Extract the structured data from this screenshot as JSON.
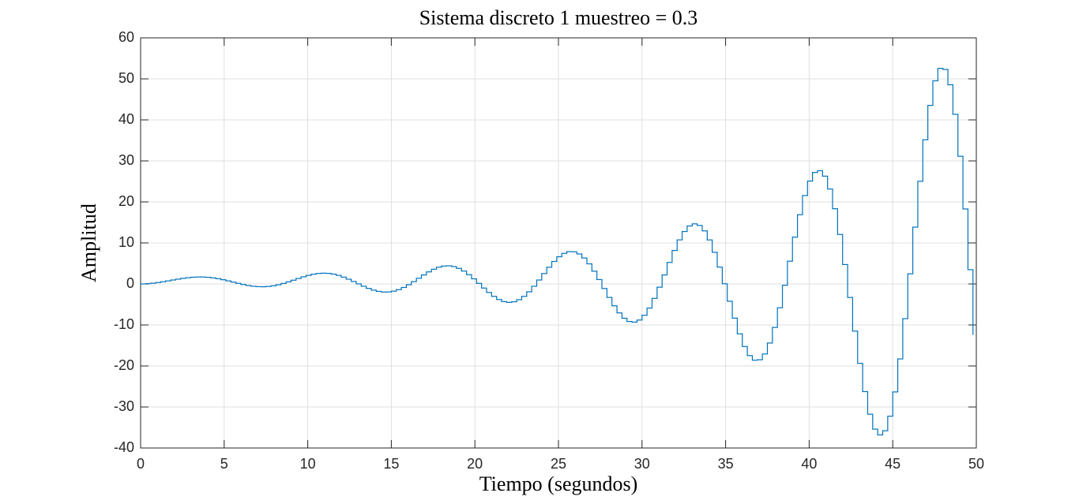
{
  "chart_data": {
    "type": "stairs",
    "title": "Sistema discreto 1 muestreo = 0.3",
    "xlabel": "Tiempo (segundos)",
    "ylabel": "Amplitud",
    "xlim": [
      0,
      50
    ],
    "xticks": [
      0,
      5,
      10,
      15,
      20,
      25,
      30,
      35,
      40,
      45,
      50
    ],
    "ylim": [
      -40,
      60
    ],
    "yticks": [
      -40,
      -30,
      -20,
      -10,
      0,
      10,
      20,
      30,
      40,
      50,
      60
    ],
    "grid": true,
    "color": "#0072bd",
    "x": [
      0,
      0.3,
      0.6,
      0.9,
      1.2,
      1.5,
      1.8,
      2.1,
      2.4,
      2.7,
      3,
      3.3,
      3.6,
      3.9,
      4.2,
      4.5,
      4.8,
      5.1,
      5.4,
      5.7,
      6,
      6.3,
      6.6,
      6.9,
      7.2,
      7.5,
      7.8,
      8.1,
      8.4,
      8.7,
      9,
      9.3,
      9.6,
      9.9,
      10.2,
      10.5,
      10.8,
      11.1,
      11.4,
      11.7,
      12,
      12.3,
      12.6,
      12.9,
      13.2,
      13.5,
      13.8,
      14.1,
      14.4,
      14.7,
      15,
      15.3,
      15.6,
      15.9,
      16.2,
      16.5,
      16.8,
      17.1,
      17.4,
      17.7,
      18,
      18.3,
      18.6,
      18.9,
      19.2,
      19.5,
      19.8,
      20.1,
      20.4,
      20.7,
      21,
      21.3,
      21.6,
      21.9,
      22.2,
      22.5,
      22.8,
      23.1,
      23.4,
      23.7,
      24,
      24.3,
      24.6,
      24.9,
      25.2,
      25.5,
      25.8,
      26.1,
      26.4,
      26.7,
      27,
      27.3,
      27.6,
      27.9,
      28.2,
      28.5,
      28.8,
      29.1,
      29.4,
      29.7,
      30,
      30.3,
      30.6,
      30.9,
      31.2,
      31.5,
      31.8,
      32.1,
      32.4,
      32.7,
      33,
      33.3,
      33.6,
      33.9,
      34.2,
      34.5,
      34.8,
      35.1,
      35.4,
      35.7,
      36,
      36.3,
      36.6,
      36.9,
      37.2,
      37.5,
      37.8,
      38.1,
      38.4,
      38.7,
      39,
      39.3,
      39.6,
      39.9,
      40.2,
      40.5,
      40.8,
      41.1,
      41.4,
      41.7,
      42,
      42.3,
      42.6,
      42.9,
      43.2,
      43.5,
      43.8,
      44.1,
      44.4,
      44.7,
      45,
      45.3,
      45.6,
      45.9,
      46.2,
      46.5,
      46.8,
      47.1,
      47.4,
      47.7,
      48,
      48.3,
      48.6,
      48.9,
      49.2,
      49.5,
      49.8
    ],
    "values": [
      0,
      0.07,
      0.18,
      0.34,
      0.53,
      0.74,
      0.96,
      1.17,
      1.36,
      1.52,
      1.64,
      1.69,
      1.69,
      1.61,
      1.48,
      1.28,
      1.03,
      0.75,
      0.45,
      0.15,
      -0.14,
      -0.38,
      -0.56,
      -0.66,
      -0.69,
      -0.61,
      -0.45,
      -0.21,
      0.12,
      0.5,
      0.91,
      1.33,
      1.74,
      2.09,
      2.37,
      2.56,
      2.63,
      2.58,
      2.39,
      2.09,
      1.67,
      1.16,
      0.6,
      0.02,
      -0.56,
      -1.08,
      -1.51,
      -1.82,
      -1.97,
      -1.95,
      -1.76,
      -1.39,
      -0.86,
      -0.19,
      0.57,
      1.38,
      2.19,
      2.94,
      3.59,
      4.08,
      4.37,
      4.42,
      4.24,
      3.8,
      3.14,
      2.27,
      1.25,
      0.14,
      -1,
      -2.08,
      -3.03,
      -3.79,
      -4.3,
      -4.49,
      -4.34,
      -3.85,
      -3.03,
      -1.92,
      -0.56,
      0.96,
      2.53,
      4.08,
      5.48,
      6.63,
      7.46,
      7.88,
      7.84,
      7.31,
      6.32,
      4.9,
      3.11,
      1.07,
      -1.11,
      -3.29,
      -5.32,
      -7.06,
      -8.37,
      -9.15,
      -9.31,
      -8.8,
      -7.64,
      -5.89,
      -3.52,
      -0.79,
      2.2,
      5.24,
      8.16,
      10.74,
      12.78,
      14.13,
      14.65,
      14.26,
      12.94,
      10.73,
      7.71,
      4.1,
      0.04,
      -4.21,
      -8.33,
      -12.16,
      -15.25,
      -17.47,
      -18.59,
      -18.48,
      -17.08,
      -14.41,
      -10.6,
      -5.8,
      -0.32,
      5.55,
      11.41,
      16.88,
      21.55,
      25.09,
      27.18,
      27.62,
      26.28,
      23.15,
      18.34,
      12.07,
      4.73,
      -3.3,
      -11.5,
      -19.36,
      -26.25,
      -31.76,
      -35.4,
      -36.8,
      -35.79,
      -32.25,
      -26.33,
      -18.28,
      -8.46,
      2.47,
      13.85,
      25.02,
      35.16,
      43.53,
      49.53,
      52.56,
      52.3,
      48.56,
      41.36,
      31.13,
      18.28,
      3.48,
      -12.29
    ]
  }
}
